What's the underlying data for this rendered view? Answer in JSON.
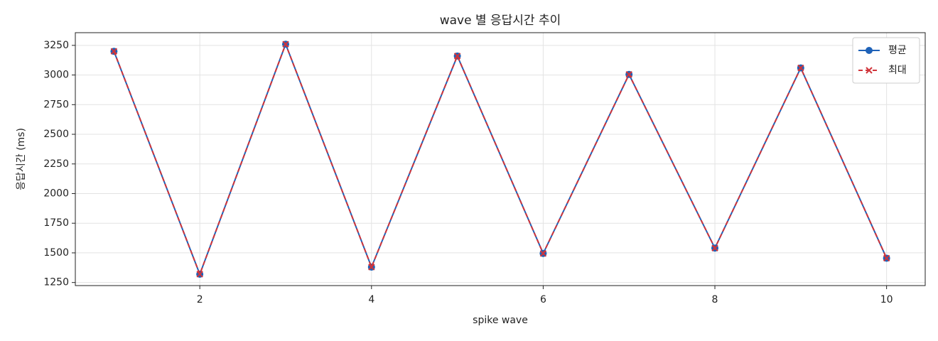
{
  "chart_data": {
    "type": "line",
    "title": "wave 별 응답시간 추이",
    "x_label": "spike wave",
    "y_label": "응답시간 (ms)",
    "x": [
      1,
      2,
      3,
      4,
      5,
      6,
      7,
      8,
      9,
      10
    ],
    "series": [
      {
        "name": "평균",
        "color": "#1f62b8",
        "marker": "circle",
        "linestyle": "solid",
        "values": [
          3200,
          1320,
          3260,
          1380,
          3160,
          1495,
          3005,
          1540,
          3060,
          1455
        ]
      },
      {
        "name": "최대",
        "color": "#d0343a",
        "marker": "x",
        "linestyle": "dashed",
        "values": [
          3200,
          1320,
          3260,
          1380,
          3160,
          1495,
          3005,
          1540,
          3060,
          1455
        ]
      }
    ],
    "xlim": [
      0.55,
      10.45
    ],
    "xticks": [
      2,
      4,
      6,
      8,
      10
    ],
    "ylim": [
      1224,
      3357
    ],
    "yticks": [
      1250,
      1500,
      1750,
      2000,
      2250,
      2500,
      2750,
      3000,
      3250
    ],
    "grid": true,
    "legend": "upper right"
  }
}
